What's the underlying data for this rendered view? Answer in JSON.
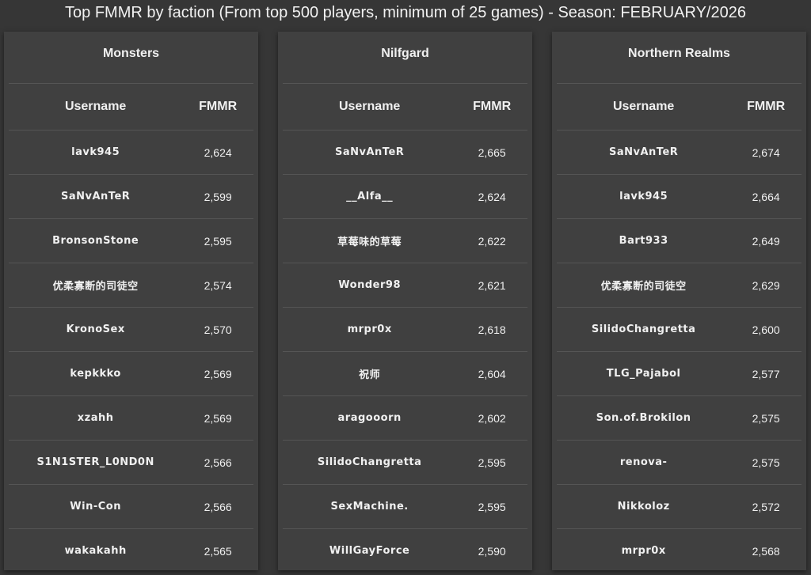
{
  "title": "Top FMMR by faction (From top 500 players, minimum of 25 games) - Season: FEBRUARY/2026",
  "columns": {
    "username": "Username",
    "fmmr": "FMMR"
  },
  "factions": [
    {
      "name": "Monsters",
      "rows": [
        [
          "lavk945",
          "2,624"
        ],
        [
          "SaNvAnTeR",
          "2,599"
        ],
        [
          "BronsonStone",
          "2,595"
        ],
        [
          "优柔寡断的司徒空",
          "2,574"
        ],
        [
          "KronoSex",
          "2,570"
        ],
        [
          "kepkkko",
          "2,569"
        ],
        [
          "xzahh",
          "2,569"
        ],
        [
          "S1N1STER_L0ND0N",
          "2,566"
        ],
        [
          "Win-Con",
          "2,566"
        ],
        [
          "wakakahh",
          "2,565"
        ]
      ]
    },
    {
      "name": "Nilfgard",
      "rows": [
        [
          "SaNvAnTeR",
          "2,665"
        ],
        [
          "__Alfa__",
          "2,624"
        ],
        [
          "草莓味的草莓",
          "2,622"
        ],
        [
          "Wonder98",
          "2,621"
        ],
        [
          "mrpr0x",
          "2,618"
        ],
        [
          "祝师",
          "2,604"
        ],
        [
          "aragooorn",
          "2,602"
        ],
        [
          "SilidoChangretta",
          "2,595"
        ],
        [
          "SexMachine.",
          "2,595"
        ],
        [
          "WillGayForce",
          "2,590"
        ]
      ]
    },
    {
      "name": "Northern Realms",
      "rows": [
        [
          "SaNvAnTeR",
          "2,674"
        ],
        [
          "lavk945",
          "2,664"
        ],
        [
          "Bart933",
          "2,649"
        ],
        [
          "优柔寡断的司徒空",
          "2,629"
        ],
        [
          "SilidoChangretta",
          "2,600"
        ],
        [
          "TLG_Pajabol",
          "2,577"
        ],
        [
          "Son.of.Brokilon",
          "2,575"
        ],
        [
          "renova-",
          "2,575"
        ],
        [
          "Nikkoloz",
          "2,572"
        ],
        [
          "mrpr0x",
          "2,568"
        ]
      ]
    }
  ]
}
